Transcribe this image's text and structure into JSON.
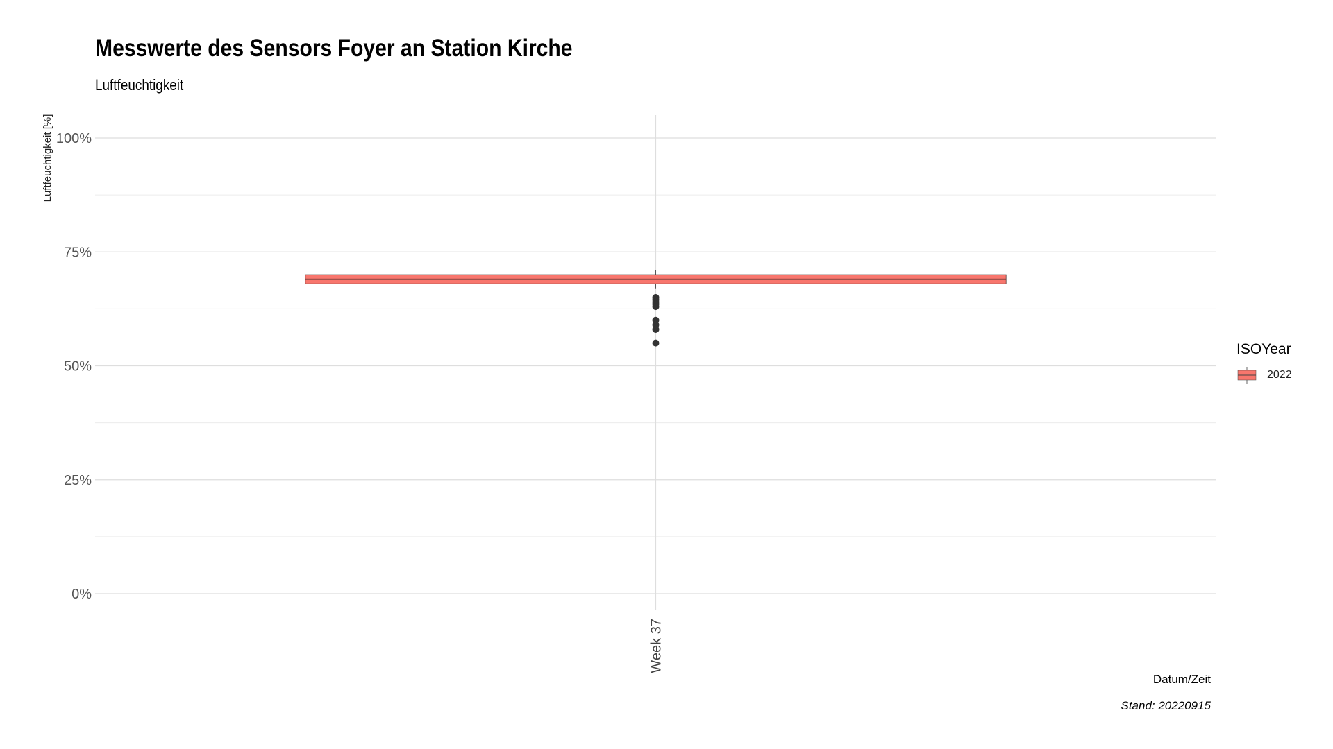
{
  "chart_data": {
    "type": "box",
    "title": "Messwerte des Sensors Foyer an Station Kirche",
    "subtitle": "Luftfeuchtigkeit",
    "xlabel": "Datum/Zeit",
    "ylabel": "Luftfeuchtigkeit [%]",
    "caption": "Stand: 20220915",
    "ylim": [
      0,
      100
    ],
    "yticks": [
      0,
      25,
      50,
      75,
      100
    ],
    "ytick_labels": [
      "0%",
      "25%",
      "50%",
      "75%",
      "100%"
    ],
    "categories": [
      "Week 37"
    ],
    "grid": true,
    "legend": {
      "title": "ISOYear",
      "position": "right",
      "entries": [
        {
          "label": "2022",
          "color": "#F8766D"
        }
      ]
    },
    "series": [
      {
        "name": "2022",
        "color": "#F8766D",
        "boxes": [
          {
            "category": "Week 37",
            "lower_whisker": 67,
            "q1": 68,
            "median": 69,
            "q3": 70,
            "upper_whisker": 71,
            "outliers": [
              65,
              64.5,
              64,
              63.5,
              63,
              60,
              59,
              58,
              55
            ]
          }
        ]
      }
    ]
  }
}
